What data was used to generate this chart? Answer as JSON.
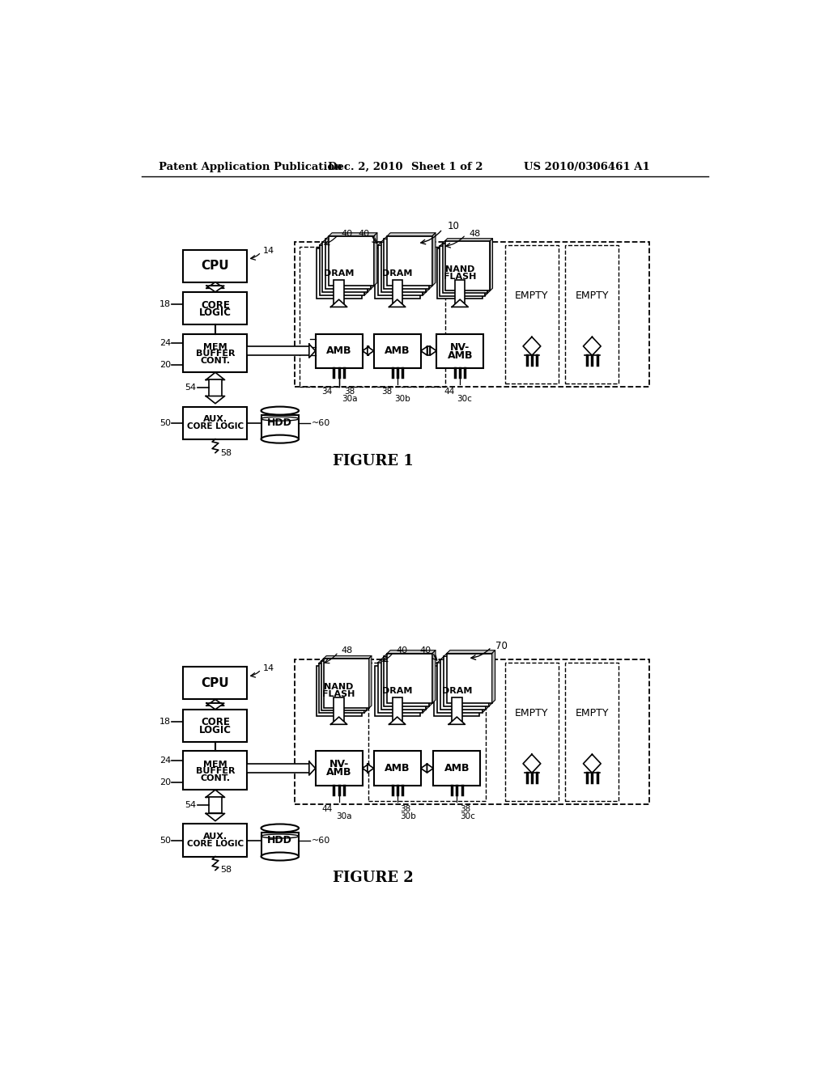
{
  "bg_color": "#ffffff",
  "header_text": "Patent Application Publication",
  "header_date": "Dec. 2, 2010",
  "header_sheet": "Sheet 1 of 2",
  "header_patent": "US 2010/0306461 A1",
  "fig1_label": "FIGURE 1",
  "fig2_label": "FIGURE 2",
  "fig1_number": "10",
  "fig2_number": "70"
}
